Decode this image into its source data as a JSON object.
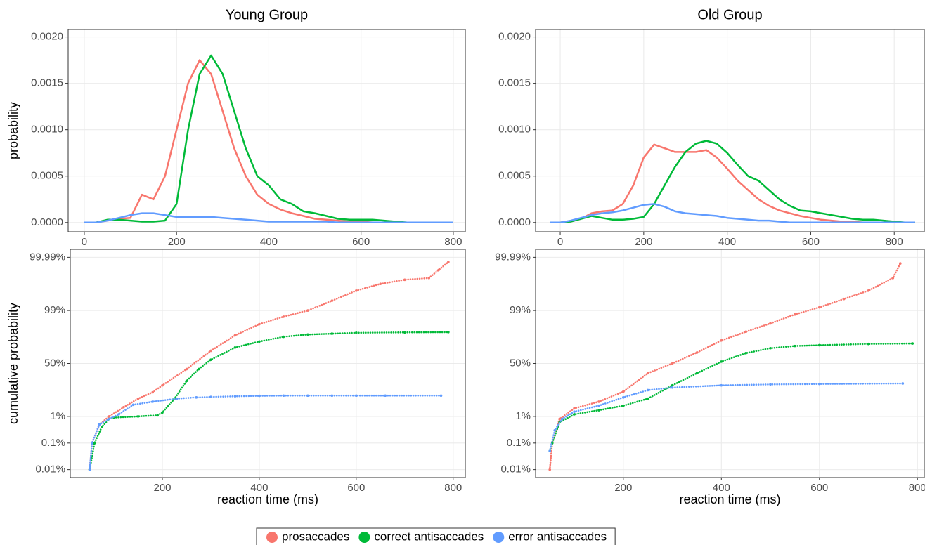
{
  "chart_data": [
    {
      "type": "line",
      "title": "Young Group",
      "ylabel": "probability",
      "x": [
        0,
        25,
        50,
        75,
        100,
        125,
        150,
        175,
        200,
        225,
        250,
        275,
        300,
        325,
        350,
        375,
        400,
        425,
        450,
        475,
        500,
        525,
        550,
        575,
        600,
        625,
        650,
        675,
        700,
        725,
        750,
        775,
        800
      ],
      "series": [
        {
          "name": "prosaccades",
          "color": "#f8766d",
          "values": [
            0,
            0,
            2e-05,
            4e-05,
            5e-05,
            0.0003,
            0.00025,
            0.0005,
            0.001,
            0.0015,
            0.00175,
            0.0016,
            0.0012,
            0.0008,
            0.0005,
            0.0003,
            0.0002,
            0.00014,
            0.0001,
            7e-05,
            4e-05,
            3e-05,
            2e-05,
            1e-05,
            1e-05,
            0,
            0,
            0,
            0,
            0,
            0,
            0,
            0
          ]
        },
        {
          "name": "correct antisaccades",
          "color": "#00ba38",
          "values": [
            0,
            0,
            3e-05,
            3e-05,
            2e-05,
            1e-05,
            1e-05,
            2e-05,
            0.0002,
            0.001,
            0.0016,
            0.0018,
            0.0016,
            0.0012,
            0.0008,
            0.0005,
            0.0004,
            0.00025,
            0.0002,
            0.00012,
            0.0001,
            7e-05,
            4e-05,
            3e-05,
            3e-05,
            3e-05,
            2e-05,
            1e-05,
            0,
            0,
            0,
            0,
            0
          ]
        },
        {
          "name": "error antisaccades",
          "color": "#619cff",
          "values": [
            0,
            0,
            2e-05,
            5e-05,
            8e-05,
            0.0001,
            0.0001,
            8e-05,
            6e-05,
            6e-05,
            6e-05,
            6e-05,
            5e-05,
            4e-05,
            3e-05,
            2e-05,
            1e-05,
            1e-05,
            1e-05,
            1e-05,
            1e-05,
            1e-05,
            0,
            0,
            0,
            0,
            0,
            0,
            0,
            0,
            0,
            0,
            0
          ]
        }
      ],
      "xlim": [
        -35,
        826
      ],
      "xticks": [
        0,
        200,
        400,
        600,
        800
      ],
      "ylim": [
        -0.0001,
        0.00208
      ],
      "yticks": [
        {
          "value": 0,
          "label": "0.0000"
        },
        {
          "value": 0.0005,
          "label": "0.0005"
        },
        {
          "value": 0.001,
          "label": "0.0010"
        },
        {
          "value": 0.0015,
          "label": "0.0015"
        },
        {
          "value": 0.002,
          "label": "0.0020"
        }
      ],
      "grid": true
    },
    {
      "type": "line",
      "title": "Old Group",
      "x": [
        -25,
        0,
        25,
        50,
        75,
        100,
        125,
        150,
        175,
        200,
        225,
        250,
        275,
        300,
        325,
        350,
        375,
        400,
        425,
        450,
        475,
        500,
        525,
        550,
        575,
        600,
        625,
        650,
        675,
        700,
        725,
        750,
        775,
        800,
        825,
        850
      ],
      "series": [
        {
          "color": "#f8766d",
          "values": [
            0,
            0,
            1e-05,
            4e-05,
            0.0001,
            0.00012,
            0.00013,
            0.0002,
            0.0004,
            0.0007,
            0.00084,
            0.0008,
            0.00076,
            0.00076,
            0.00076,
            0.00078,
            0.0007,
            0.00058,
            0.00045,
            0.00035,
            0.00025,
            0.00018,
            0.00013,
            0.0001,
            7e-05,
            5e-05,
            3e-05,
            2e-05,
            1e-05,
            1e-05,
            0,
            0,
            0,
            0,
            0,
            0
          ]
        },
        {
          "color": "#00ba38",
          "values": [
            0,
            0,
            1e-05,
            4e-05,
            7e-05,
            5e-05,
            3e-05,
            3e-05,
            4e-05,
            6e-05,
            0.0002,
            0.0004,
            0.0006,
            0.00076,
            0.00085,
            0.00088,
            0.00085,
            0.00075,
            0.00062,
            0.0005,
            0.00045,
            0.00035,
            0.00025,
            0.00018,
            0.00013,
            0.00012,
            0.0001,
            8e-05,
            6e-05,
            4e-05,
            3e-05,
            3e-05,
            2e-05,
            1e-05,
            0,
            0
          ]
        },
        {
          "color": "#619cff",
          "values": [
            0,
            0,
            2e-05,
            5e-05,
            8e-05,
            0.0001,
            0.00011,
            0.00013,
            0.00016,
            0.00019,
            0.0002,
            0.00017,
            0.00012,
            0.0001,
            9e-05,
            8e-05,
            7e-05,
            5e-05,
            4e-05,
            3e-05,
            2e-05,
            2e-05,
            1e-05,
            0,
            0,
            0,
            0,
            0,
            0,
            0,
            0,
            0,
            0,
            0,
            0,
            0
          ]
        }
      ],
      "xlim": [
        -59,
        872
      ],
      "xticks": [
        0,
        200,
        400,
        600,
        800
      ],
      "ylim": [
        -0.0001,
        0.00208
      ],
      "yticks": [
        {
          "value": 0,
          "label": "0.0000"
        },
        {
          "value": 0.0005,
          "label": "0.0005"
        },
        {
          "value": 0.001,
          "label": "0.0010"
        },
        {
          "value": 0.0015,
          "label": "0.0015"
        },
        {
          "value": 0.002,
          "label": "0.0020"
        }
      ],
      "grid": true
    },
    {
      "type": "scatter",
      "ylabel": "cumulative probability",
      "xlabel": "reaction time (ms)",
      "yscale": "logit",
      "series": [
        {
          "color": "#f8766d",
          "x": [
            50,
            55,
            70,
            90,
            120,
            150,
            180,
            200,
            250,
            300,
            350,
            400,
            450,
            500,
            550,
            600,
            650,
            700,
            750,
            770,
            790
          ],
          "values": [
            0.01,
            0.1,
            0.5,
            1,
            2.2,
            4.5,
            7.6,
            13,
            38,
            75,
            92,
            96.8,
            98.3,
            99,
            99.57,
            99.82,
            99.9,
            99.93,
            99.94,
            99.97,
            99.985
          ]
        },
        {
          "color": "#00ba38",
          "x": [
            50,
            60,
            75,
            90,
            100,
            150,
            190,
            200,
            225,
            250,
            275,
            300,
            350,
            400,
            450,
            500,
            550,
            600,
            700,
            790
          ],
          "values": [
            0.01,
            0.1,
            0.4,
            0.8,
            0.9,
            1,
            1.1,
            1.4,
            4.5,
            18,
            38,
            58,
            80,
            87,
            91,
            92.5,
            93,
            93.5,
            93.7,
            93.8
          ]
        },
        {
          "color": "#619cff",
          "x": [
            50,
            55,
            70,
            90,
            110,
            140,
            180,
            230,
            270,
            300,
            350,
            400,
            450,
            500,
            550,
            600,
            660,
            775
          ],
          "values": [
            0.01,
            0.1,
            0.5,
            0.8,
            1.2,
            2.7,
            3.5,
            4.5,
            5,
            5.2,
            5.5,
            5.7,
            5.8,
            5.8,
            5.8,
            5.8,
            5.8,
            5.8
          ]
        }
      ],
      "xlim": [
        10,
        825
      ],
      "xticks": [
        200,
        400,
        600,
        800
      ],
      "ylim": [
        0.005,
        99.995
      ],
      "yticks": [
        {
          "value": 0.01,
          "label": "0.01%"
        },
        {
          "value": 0.1,
          "label": "0.1%"
        },
        {
          "value": 1,
          "label": "1%"
        },
        {
          "value": 50,
          "label": "50%"
        },
        {
          "value": 99,
          "label": "99%"
        },
        {
          "value": 99.99,
          "label": "99.99%"
        }
      ],
      "grid": true
    },
    {
      "type": "scatter",
      "xlabel": "reaction time (ms)",
      "yscale": "logit",
      "series": [
        {
          "color": "#f8766d",
          "x": [
            50,
            55,
            70,
            100,
            150,
            200,
            250,
            300,
            350,
            400,
            450,
            500,
            550,
            600,
            650,
            700,
            750,
            765
          ],
          "values": [
            0.01,
            0.1,
            0.8,
            2,
            3.5,
            8,
            30,
            50,
            72,
            88,
            94,
            97,
            98.6,
            99.24,
            99.63,
            99.82,
            99.94,
            99.983
          ]
        },
        {
          "color": "#00ba38",
          "x": [
            50,
            55,
            70,
            100,
            150,
            200,
            250,
            300,
            350,
            400,
            450,
            500,
            550,
            600,
            700,
            790
          ],
          "values": [
            0.05,
            0.1,
            0.6,
            1.2,
            1.7,
            2.5,
            4.5,
            13,
            30,
            54,
            71,
            79,
            82,
            83,
            84.5,
            85
          ]
        },
        {
          "color": "#619cff",
          "x": [
            50,
            60,
            75,
            100,
            150,
            200,
            250,
            300,
            400,
            500,
            600,
            770
          ],
          "values": [
            0.05,
            0.3,
            0.8,
            1.5,
            2.5,
            5,
            9,
            11,
            13,
            14,
            14.5,
            15
          ]
        }
      ],
      "xlim": [
        21,
        814
      ],
      "xticks": [
        200,
        400,
        600,
        800
      ],
      "ylim": [
        0.005,
        99.995
      ],
      "yticks": [
        {
          "value": 0.01,
          "label": "0.01%"
        },
        {
          "value": 0.1,
          "label": "0.1%"
        },
        {
          "value": 1,
          "label": "1%"
        },
        {
          "value": 50,
          "label": "50%"
        },
        {
          "value": 99,
          "label": "99%"
        },
        {
          "value": 99.99,
          "label": "99.99%"
        }
      ],
      "grid": true
    }
  ]
}
